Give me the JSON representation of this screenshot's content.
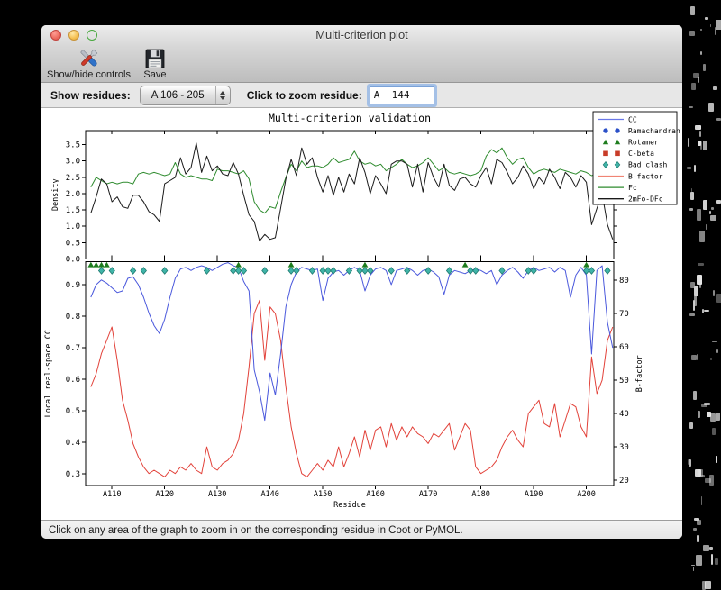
{
  "window": {
    "title": "Multi-criterion plot"
  },
  "toolbar": {
    "show_hide_label": "Show/hide controls",
    "save_label": "Save"
  },
  "controls": {
    "show_residues_label": "Show residues:",
    "residue_range_value": "A 106 - 205",
    "zoom_residue_label": "Click to zoom residue:",
    "zoom_residue_value": "A  144"
  },
  "status": {
    "text": "Click on any area of the graph to zoom in on the corresponding residue in Coot or PyMOL."
  },
  "legend": [
    {
      "label": "CC",
      "type": "line",
      "color": "#6a78e8"
    },
    {
      "label": "Ramachandran",
      "type": "circle",
      "color": "#2b50c8"
    },
    {
      "label": "Rotamer",
      "type": "triangle",
      "color": "#1e7d1e"
    },
    {
      "label": "C-beta",
      "type": "square",
      "color": "#c83c28"
    },
    {
      "label": "Bad clash",
      "type": "diamond",
      "color": "#40b4a8",
      "edge": "#1f7a70"
    },
    {
      "label": "B-factor",
      "type": "line",
      "color": "#f08474"
    },
    {
      "label": "Fc",
      "type": "line",
      "color": "#2e8b2e"
    },
    {
      "label": "2mFo-DFc",
      "type": "line",
      "color": "#1a1a1a"
    }
  ],
  "chart_data": {
    "type": "line",
    "title": "Multi-criterion validation",
    "x_label": "Residue",
    "x_start": 106,
    "x_end": 205,
    "x_ticks": [
      {
        "v": 110,
        "label": "A110"
      },
      {
        "v": 120,
        "label": "A120"
      },
      {
        "v": 130,
        "label": "A130"
      },
      {
        "v": 140,
        "label": "A140"
      },
      {
        "v": 150,
        "label": "A150"
      },
      {
        "v": 160,
        "label": "A160"
      },
      {
        "v": 170,
        "label": "A170"
      },
      {
        "v": 180,
        "label": "A180"
      },
      {
        "v": 190,
        "label": "A190"
      },
      {
        "v": 200,
        "label": "A200"
      }
    ],
    "top_plot": {
      "y_label": "Density",
      "ylim": [
        0,
        3.93
      ],
      "y_ticks": [
        "0.0",
        "0.5",
        "1.0",
        "1.5",
        "2.0",
        "2.5",
        "3.0",
        "3.5"
      ],
      "series": [
        {
          "name": "Fc",
          "color": "#2e8b2e",
          "values": [
            2.2,
            2.5,
            2.4,
            2.3,
            2.35,
            2.3,
            2.35,
            2.35,
            2.3,
            2.6,
            2.65,
            2.6,
            2.65,
            2.6,
            2.55,
            2.6,
            2.95,
            2.6,
            2.5,
            2.55,
            2.5,
            2.45,
            2.45,
            2.4,
            2.75,
            2.7,
            2.7,
            2.65,
            2.6,
            2.7,
            2.45,
            1.75,
            1.5,
            1.4,
            1.6,
            1.55,
            2.05,
            2.5,
            2.9,
            2.7,
            3.0,
            2.8,
            2.85,
            2.85,
            2.8,
            2.9,
            3.1,
            2.95,
            3.0,
            3.05,
            3.3,
            3.0,
            2.9,
            2.95,
            2.85,
            2.9,
            2.7,
            2.8,
            2.9,
            3.05,
            2.9,
            2.8,
            2.85,
            2.95,
            3.1,
            2.9,
            2.7,
            2.8,
            2.65,
            2.6,
            2.65,
            2.6,
            2.55,
            2.6,
            2.7,
            3.15,
            3.35,
            3.25,
            3.4,
            3.1,
            2.9,
            3.05,
            3.1,
            2.8,
            2.6,
            2.7,
            2.75,
            2.7,
            2.65,
            2.75,
            2.7,
            2.65,
            2.6,
            2.7,
            2.65,
            2.55,
            2.6,
            2.95,
            2.5,
            2.4
          ]
        },
        {
          "name": "2mFo-DFc",
          "color": "#1a1a1a",
          "values": [
            1.4,
            1.9,
            2.45,
            2.3,
            1.75,
            1.9,
            1.6,
            1.55,
            1.95,
            1.95,
            1.75,
            1.45,
            1.35,
            1.15,
            2.3,
            2.4,
            2.5,
            3.1,
            2.6,
            2.8,
            3.55,
            2.65,
            3.15,
            2.7,
            2.85,
            2.6,
            2.55,
            2.95,
            2.6,
            1.95,
            1.35,
            1.15,
            0.55,
            0.75,
            0.6,
            0.65,
            1.55,
            2.45,
            3.05,
            2.55,
            3.4,
            2.9,
            3.1,
            2.5,
            2.05,
            2.55,
            1.95,
            2.5,
            2.05,
            2.6,
            2.3,
            3.1,
            2.65,
            2.0,
            2.55,
            2.3,
            2.0,
            2.9,
            3.0,
            3.0,
            2.9,
            2.2,
            2.9,
            2.05,
            2.95,
            2.5,
            2.2,
            2.9,
            2.25,
            2.1,
            2.45,
            2.5,
            2.3,
            2.2,
            2.55,
            2.8,
            2.3,
            3.05,
            2.95,
            2.65,
            2.3,
            2.5,
            2.85,
            2.6,
            2.15,
            2.5,
            2.3,
            2.75,
            2.5,
            2.15,
            2.65,
            2.5,
            2.2,
            2.55,
            2.35,
            1.05,
            1.55,
            2.0,
            1.05,
            0.6
          ]
        }
      ]
    },
    "bottom_plot": {
      "y_label_left": "Local real-space CC",
      "y_label_left_color": "#4a58dc",
      "ylim_left": [
        0.263,
        0.973
      ],
      "y_ticks_left": [
        "0.3",
        "0.4",
        "0.5",
        "0.6",
        "0.7",
        "0.8",
        "0.9"
      ],
      "y_label_right": "B-factor",
      "y_label_right_color": "#e2423a",
      "ylim_right": [
        18.4,
        85.6
      ],
      "y_ticks_right": [
        "20",
        "30",
        "40",
        "50",
        "60",
        "70",
        "80"
      ],
      "series_left": [
        {
          "name": "CC",
          "color": "#4a58dc",
          "values": [
            0.86,
            0.9,
            0.915,
            0.905,
            0.89,
            0.875,
            0.88,
            0.92,
            0.925,
            0.9,
            0.86,
            0.81,
            0.77,
            0.745,
            0.79,
            0.86,
            0.92,
            0.95,
            0.955,
            0.945,
            0.955,
            0.96,
            0.955,
            0.945,
            0.955,
            0.965,
            0.97,
            0.96,
            0.955,
            0.91,
            0.88,
            0.63,
            0.56,
            0.47,
            0.62,
            0.55,
            0.68,
            0.83,
            0.9,
            0.94,
            0.955,
            0.95,
            0.945,
            0.95,
            0.85,
            0.92,
            0.94,
            0.945,
            0.93,
            0.945,
            0.955,
            0.945,
            0.88,
            0.93,
            0.95,
            0.955,
            0.945,
            0.9,
            0.945,
            0.95,
            0.955,
            0.945,
            0.93,
            0.945,
            0.95,
            0.94,
            0.925,
            0.87,
            0.93,
            0.945,
            0.94,
            0.935,
            0.945,
            0.95,
            0.945,
            0.935,
            0.945,
            0.9,
            0.93,
            0.945,
            0.955,
            0.94,
            0.92,
            0.945,
            0.955,
            0.945,
            0.95,
            0.955,
            0.94,
            0.955,
            0.945,
            0.86,
            0.93,
            0.955,
            0.93,
            0.68,
            0.945,
            0.96,
            0.78,
            0.7
          ]
        }
      ],
      "series_right": [
        {
          "name": "B-factor",
          "color": "#e2423a",
          "values": [
            48,
            52,
            58,
            62,
            66,
            56,
            44,
            38,
            31,
            27,
            24,
            22,
            23,
            22,
            21,
            23,
            22,
            24,
            23,
            25,
            23,
            22,
            30,
            24,
            23,
            25,
            26,
            28,
            32,
            40,
            54,
            70,
            74,
            56,
            72,
            70,
            62,
            48,
            36,
            28,
            22,
            21,
            23,
            25,
            23,
            26,
            24,
            30,
            24,
            28,
            33,
            27,
            35,
            29,
            35,
            36,
            30,
            37,
            32,
            36,
            33,
            36,
            34,
            33,
            31,
            34,
            33,
            35,
            37,
            29,
            33,
            37,
            35,
            24,
            22,
            23,
            24,
            26,
            30,
            33,
            35,
            32,
            30,
            40,
            42,
            44,
            37,
            36,
            43,
            33,
            38,
            43,
            42,
            36,
            33,
            57,
            46,
            50,
            62,
            66
          ]
        }
      ],
      "markers": [
        {
          "name": "Rotamer",
          "shape": "triangle",
          "color": "#1e7d1e",
          "residues": [
            106,
            107,
            108,
            109,
            134,
            144,
            158,
            177,
            200
          ]
        },
        {
          "name": "Bad clash",
          "shape": "diamond",
          "color": "#40b4a8",
          "edge": "#1f7a70",
          "residues": [
            108,
            110,
            114,
            116,
            120,
            128,
            133,
            134,
            135,
            139,
            144,
            145,
            148,
            150,
            151,
            152,
            155,
            157,
            158,
            159,
            163,
            166,
            170,
            174,
            178,
            179,
            184,
            189,
            190,
            200,
            201,
            204
          ]
        },
        {
          "name": "Ramachandran",
          "shape": "circle",
          "color": "#2b50c8",
          "residues": []
        },
        {
          "name": "C-beta",
          "shape": "square",
          "color": "#c83c28",
          "residues": []
        }
      ]
    }
  }
}
